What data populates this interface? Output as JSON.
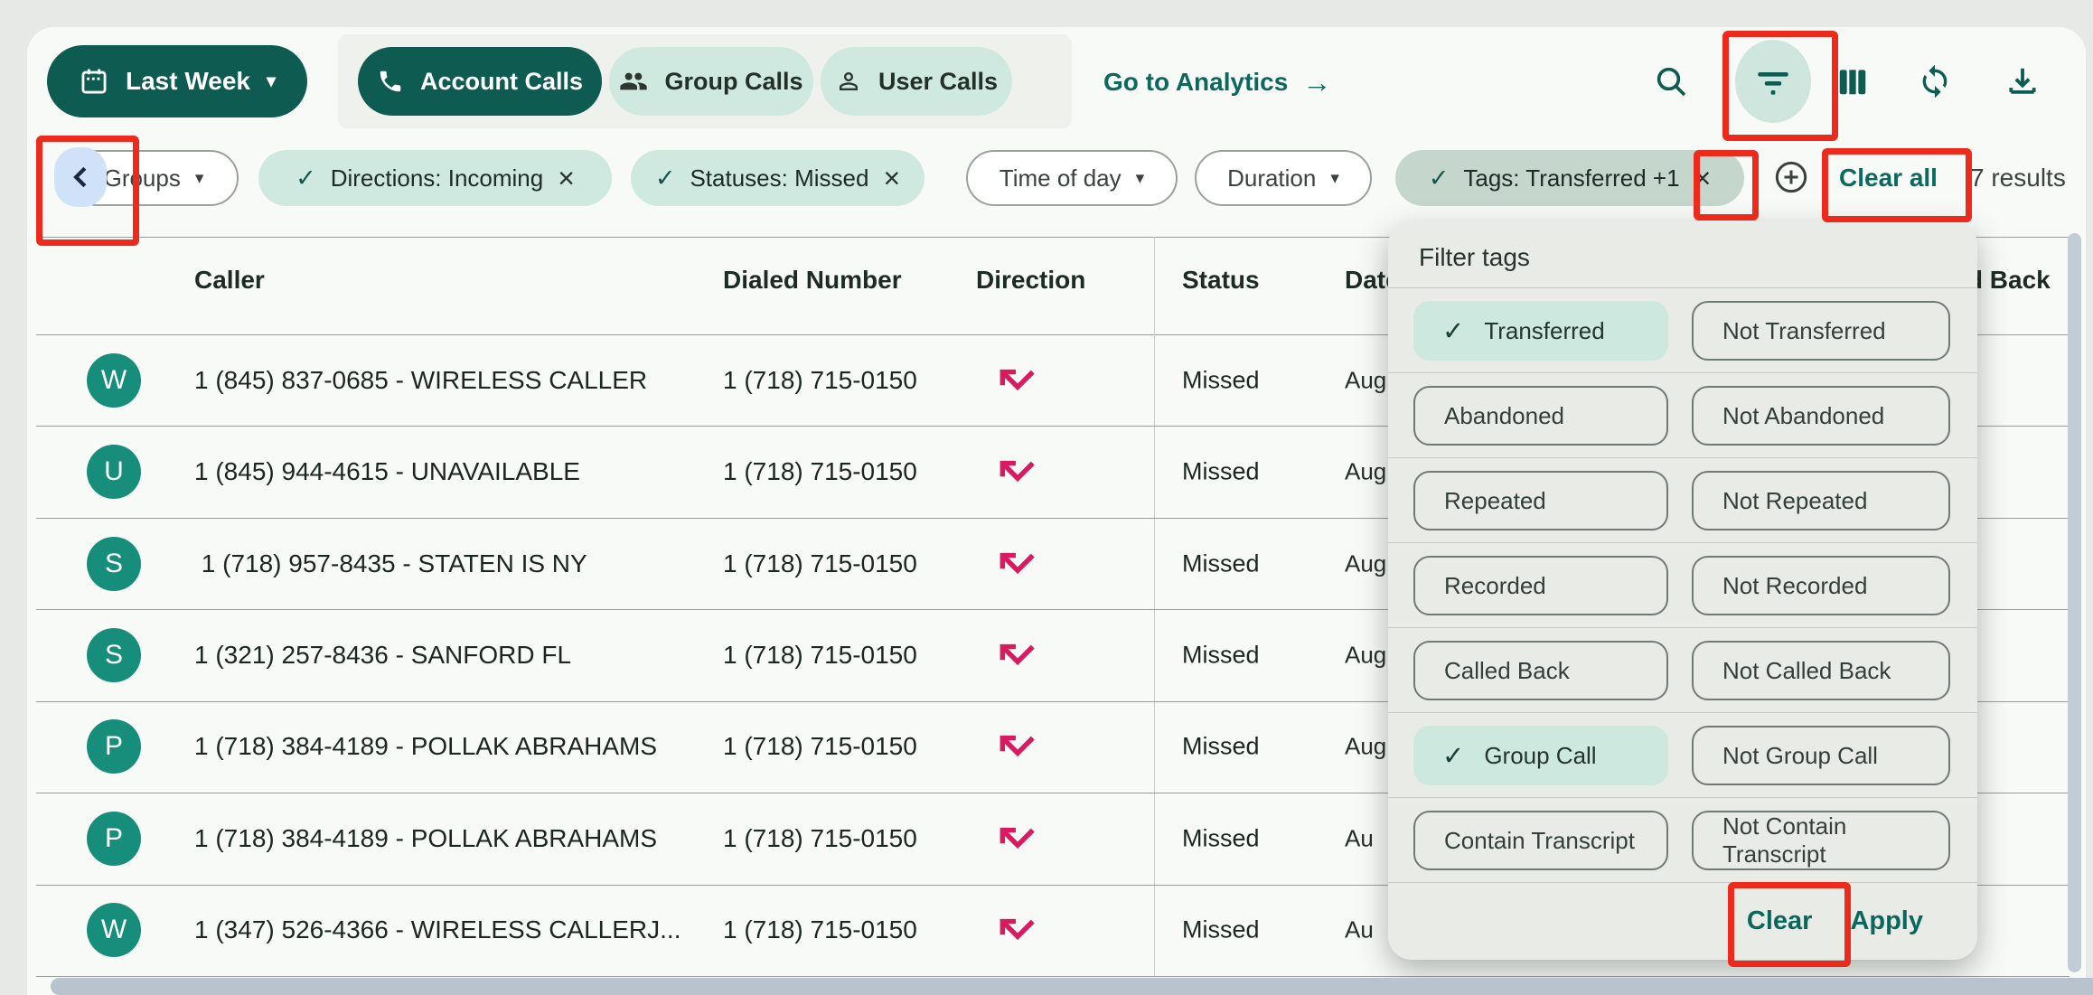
{
  "header": {
    "date_range_label": "Last Week",
    "date_range_icon": "calendar-icon",
    "tabs": [
      {
        "label": "Account Calls",
        "icon": "phone-icon",
        "active": true
      },
      {
        "label": "Group Calls",
        "icon": "group-icon",
        "active": false
      },
      {
        "label": "User Calls",
        "icon": "person-icon",
        "active": false
      }
    ],
    "analytics_link_label": "Go to Analytics",
    "analytics_arrow": "arrow-right-icon",
    "action_icons": [
      {
        "name": "search-icon"
      },
      {
        "name": "filter-icon",
        "highlighted": true
      },
      {
        "name": "columns-icon"
      },
      {
        "name": "sync-icon"
      },
      {
        "name": "download-icon"
      }
    ]
  },
  "filter_bar": {
    "scroll_left_icon": "chevron-left-icon",
    "chips": [
      {
        "label": "Groups",
        "kind": "dropdown"
      },
      {
        "label": "Directions: Incoming",
        "kind": "applied"
      },
      {
        "label": "Statuses: Missed",
        "kind": "applied"
      },
      {
        "label": "Time of day",
        "kind": "dropdown"
      },
      {
        "label": "Duration",
        "kind": "dropdown"
      },
      {
        "label": "Tags: Transferred +1",
        "kind": "applied",
        "open": true
      }
    ],
    "add_filter_icon": "plus-circle-icon",
    "clear_all_label": "Clear all",
    "results_label": "7 results"
  },
  "table": {
    "columns": {
      "caller": "Caller",
      "dialed_number": "Dialed Number",
      "direction": "Direction",
      "status": "Status",
      "date": "Date",
      "called_back": "Called Back"
    },
    "direction_icon": "call-missed-incoming-icon",
    "rows": [
      {
        "initial": "W",
        "caller": "1 (845) 837-0685 - WIRELESS CALLER",
        "dialed_number": "1 (718) 715-0150",
        "direction": "incoming-missed",
        "status": "Missed",
        "date_visible": "Aug"
      },
      {
        "initial": "U",
        "caller": "1 (845) 944-4615 - UNAVAILABLE",
        "dialed_number": "1 (718) 715-0150",
        "direction": "incoming-missed",
        "status": "Missed",
        "date_visible": "Aug"
      },
      {
        "initial": "S",
        "caller": " 1 (718) 957-8435 - STATEN IS NY",
        "dialed_number": "1 (718) 715-0150",
        "direction": "incoming-missed",
        "status": "Missed",
        "date_visible": "Aug"
      },
      {
        "initial": "S",
        "caller": "1 (321) 257-8436 - SANFORD FL",
        "dialed_number": "1 (718) 715-0150",
        "direction": "incoming-missed",
        "status": "Missed",
        "date_visible": "Aug"
      },
      {
        "initial": "P",
        "caller": "1 (718) 384-4189 - POLLAK ABRAHAMS",
        "dialed_number": "1 (718) 715-0150",
        "direction": "incoming-missed",
        "status": "Missed",
        "date_visible": "Aug"
      },
      {
        "initial": "P",
        "caller": "1 (718) 384-4189 - POLLAK ABRAHAMS",
        "dialed_number": "1 (718) 715-0150",
        "direction": "incoming-missed",
        "status": "Missed",
        "date_visible": "Au"
      },
      {
        "initial": "W",
        "caller": "1 (347) 526-4366 - WIRELESS CALLERJ...",
        "dialed_number": "1 (718) 715-0150",
        "direction": "incoming-missed",
        "status": "Missed",
        "date_visible": "Au"
      }
    ]
  },
  "tags_panel": {
    "title": "Filter tags",
    "option_rows": [
      {
        "left": {
          "label": "Transferred",
          "selected": true
        },
        "right": {
          "label": "Not Transferred",
          "selected": false
        }
      },
      {
        "left": {
          "label": "Abandoned",
          "selected": false
        },
        "right": {
          "label": "Not Abandoned",
          "selected": false
        }
      },
      {
        "left": {
          "label": "Repeated",
          "selected": false
        },
        "right": {
          "label": "Not Repeated",
          "selected": false
        }
      },
      {
        "left": {
          "label": "Recorded",
          "selected": false
        },
        "right": {
          "label": "Not Recorded",
          "selected": false
        }
      },
      {
        "left": {
          "label": "Called Back",
          "selected": false
        },
        "right": {
          "label": "Not Called Back",
          "selected": false
        }
      },
      {
        "left": {
          "label": "Group Call",
          "selected": true
        },
        "right": {
          "label": "Not Group Call",
          "selected": false
        }
      },
      {
        "left": {
          "label": "Contain Transcript",
          "selected": false
        },
        "right": {
          "label": "Not Contain Transcript",
          "selected": false
        }
      }
    ],
    "clear_label": "Clear",
    "apply_label": "Apply"
  },
  "colors": {
    "accent_dark_teal": "#0e5b51",
    "accent_light_teal": "#cfe9e0",
    "selected_option_teal": "#cde8df",
    "link_teal": "#0c685d",
    "panel_background": "#e9ebe7",
    "annotation_red": "#ee2a1c",
    "direction_pink": "#d81b60",
    "avatar_teal": "#178d7c",
    "scroll_left_button_blue": "#cfe2f8",
    "scrollbar_gray_blue": "#c2ccd6"
  }
}
